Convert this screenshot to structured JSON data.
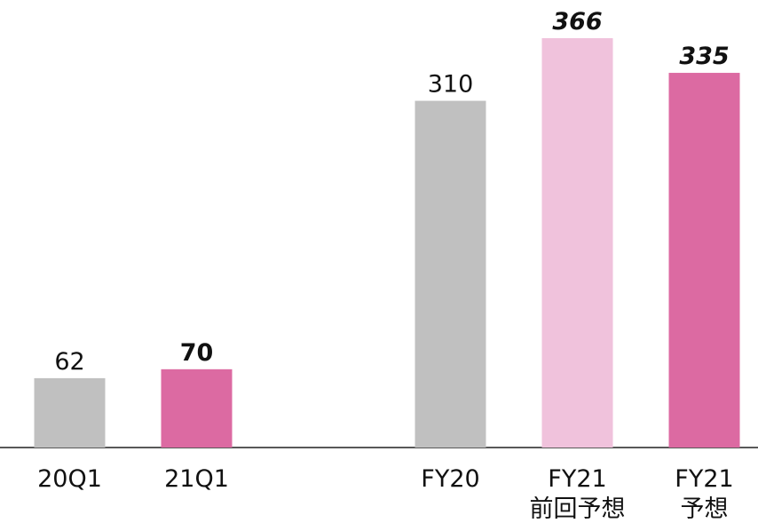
{
  "chart_data": {
    "type": "bar",
    "categories": [
      "20Q1",
      "21Q1",
      null,
      "FY20",
      "FY21\n前回予想",
      "FY21\n予想"
    ],
    "values": [
      62,
      70,
      null,
      310,
      366,
      335
    ],
    "colors": [
      "#c0c0c0",
      "#dc6aa2",
      null,
      "#c0c0c0",
      "#f0c2dc",
      "#dc6aa2"
    ],
    "label_styles": [
      "normal",
      "bold",
      null,
      "normal",
      "bold-italic",
      "bold-italic"
    ]
  }
}
